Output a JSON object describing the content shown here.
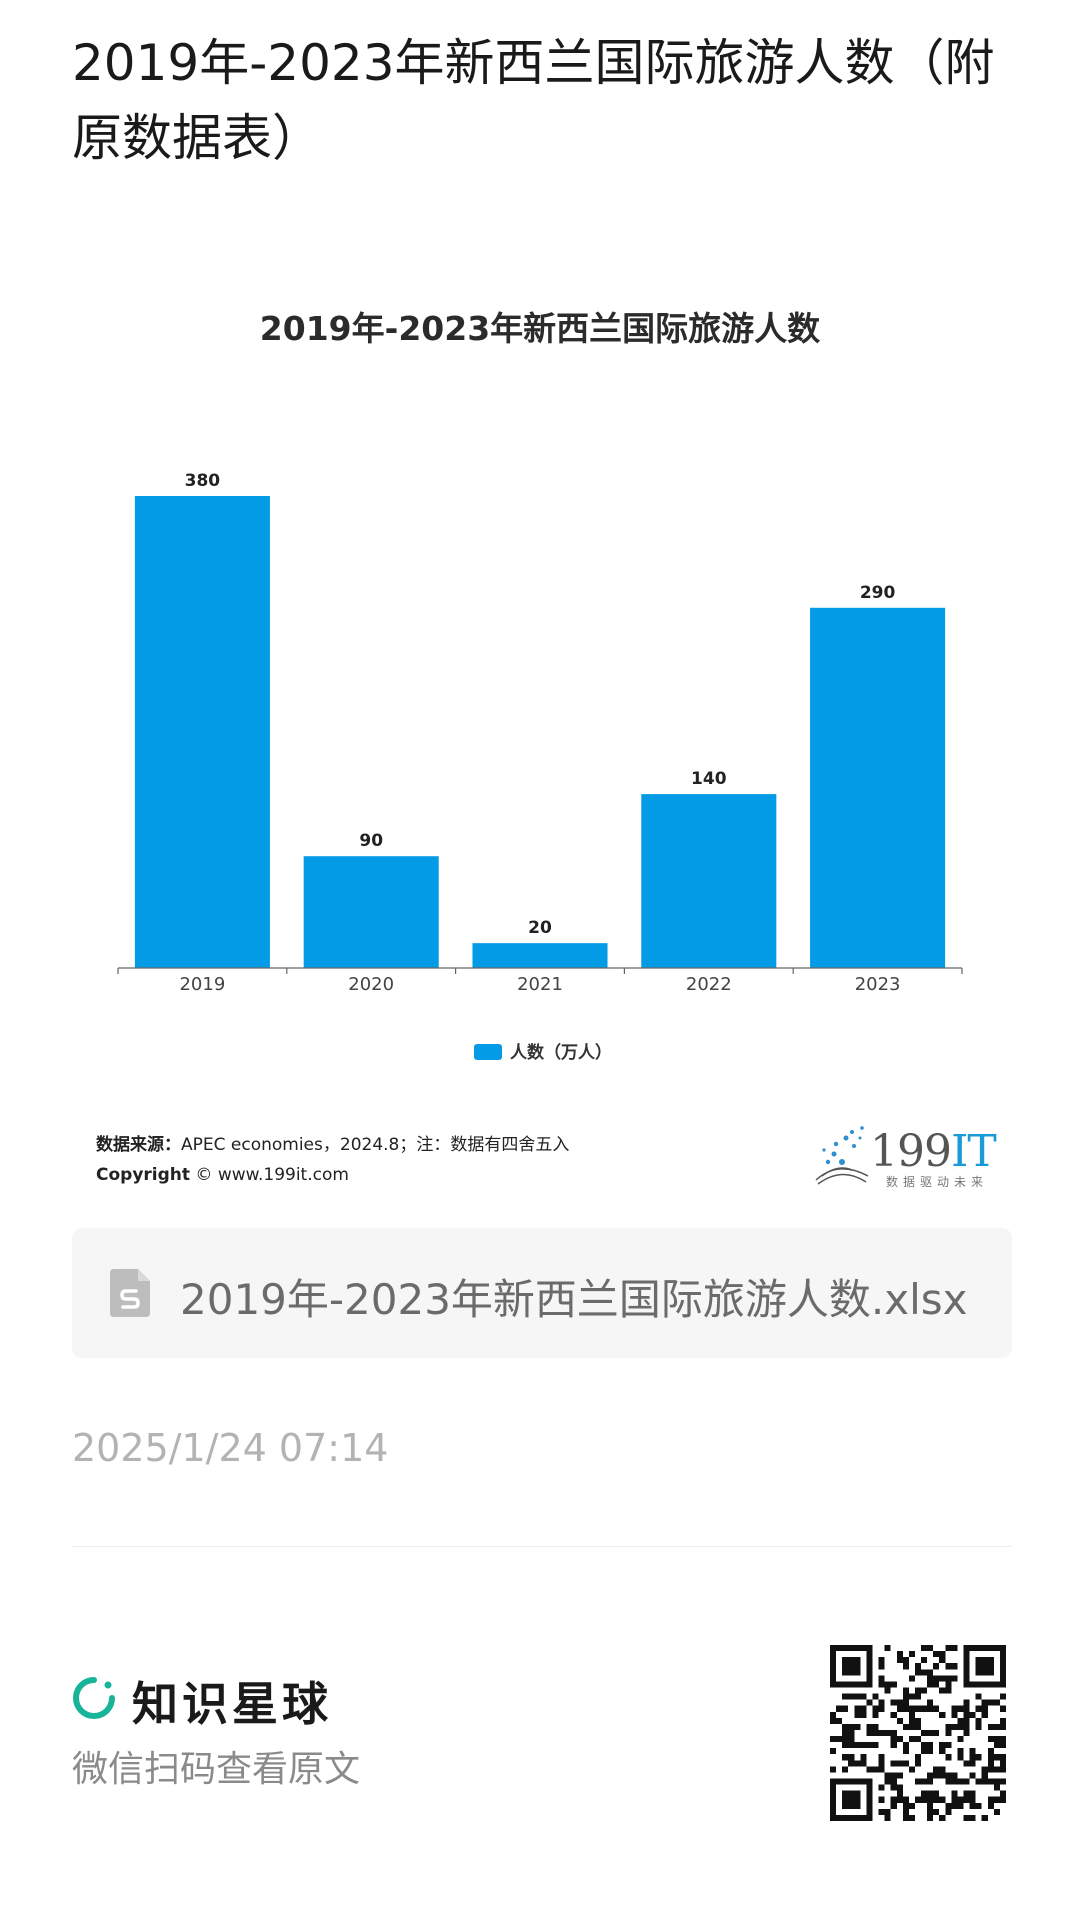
{
  "page": {
    "title": "2019年-2023年新西兰国际旅游人数（附原数据表）"
  },
  "chart_data": {
    "type": "bar",
    "title": "2019年-2023年新西兰国际旅游人数",
    "categories": [
      "2019",
      "2020",
      "2021",
      "2022",
      "2023"
    ],
    "series": [
      {
        "name": "人数（万人）",
        "values": [
          380,
          90,
          20,
          140,
          290
        ],
        "color": "#039be5"
      }
    ],
    "ylim": [
      0,
      380
    ],
    "grid": false,
    "legend": "bottom-center"
  },
  "source": {
    "label": "数据来源：",
    "text": "APEC economies，2024.8；注：数据有四舍五入",
    "copyright_label": "Copyright",
    "copyright_text": "© www.199it.com"
  },
  "brand": {
    "name_num": "199",
    "name_it": "IT",
    "slogan": "数据驱动未来"
  },
  "attachment": {
    "icon": "spreadsheet-file-icon",
    "filename": "2019年-2023年新西兰国际旅游人数.xlsx"
  },
  "timestamp": "2025/1/24 07:14",
  "footer": {
    "app_name": "知识星球",
    "scan_hint": "微信扫码查看原文",
    "accent_color": "#18b49a"
  }
}
